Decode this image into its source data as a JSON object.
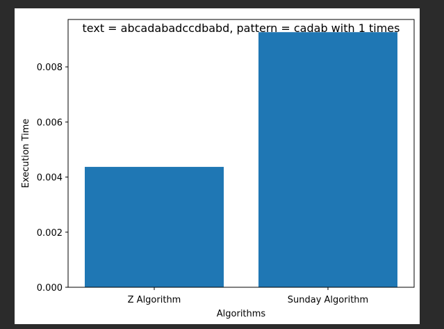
{
  "chart_data": {
    "type": "bar",
    "title": "text = abcadabadccdbabd, pattern = cadab  with 1 times",
    "xlabel": "Algorithms",
    "ylabel": "Execution Time",
    "categories": [
      "Z Algorithm",
      "Sunday Algorithm"
    ],
    "values": [
      0.00437,
      0.00926
    ],
    "ylim": [
      0,
      0.00972
    ],
    "yticks": [
      0.0,
      0.002,
      0.004,
      0.006,
      0.008
    ],
    "ytick_labels": [
      "0.000",
      "0.002",
      "0.004",
      "0.006",
      "0.008"
    ],
    "bar_color": "#1f77b4",
    "grid": false,
    "legend": null
  }
}
